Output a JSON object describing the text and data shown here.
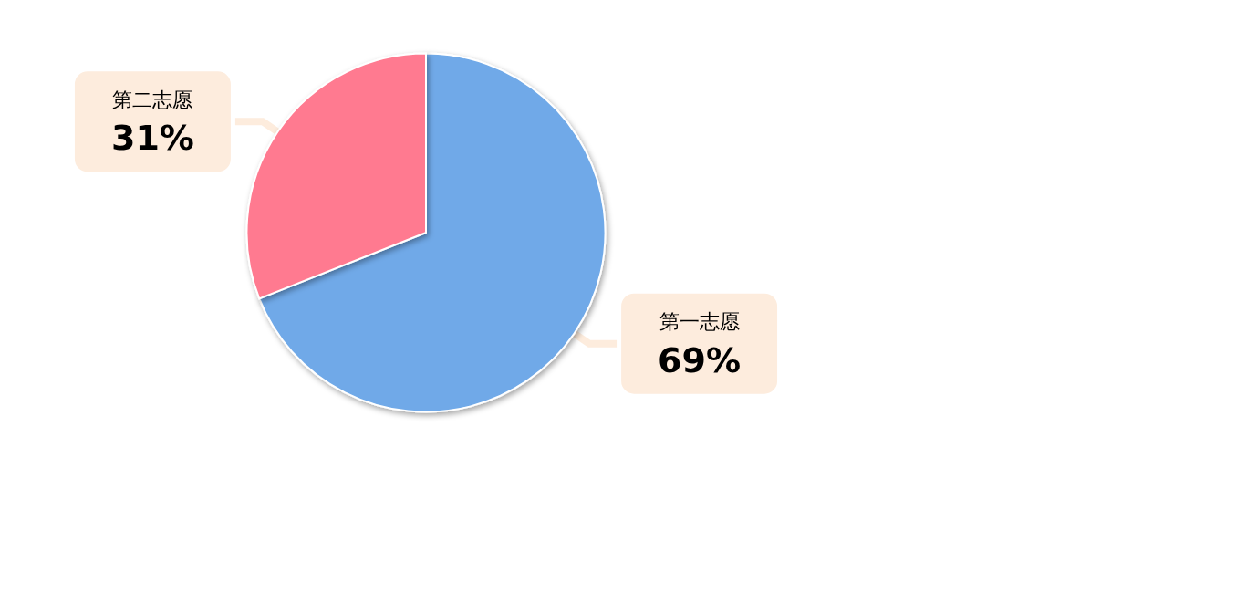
{
  "chart_data": {
    "type": "pie",
    "categories": [
      "第一志愿",
      "第二志愿"
    ],
    "values": [
      69,
      31
    ],
    "colors": [
      "#6fa9e8",
      "#ff7a90"
    ],
    "value_labels": [
      "69%",
      "31%"
    ],
    "legend": false
  }
}
